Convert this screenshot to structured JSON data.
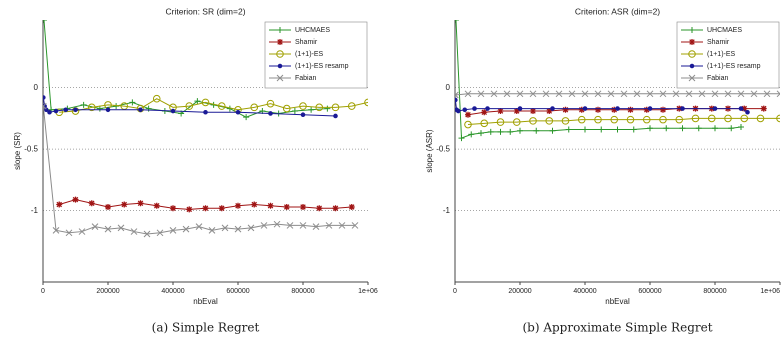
{
  "chart_data": [
    {
      "type": "line",
      "title": "Criterion: SR (dim=2)",
      "xlabel": "nbEval",
      "ylabel": "slope (SR)",
      "caption": "(a) Simple Regret",
      "xlim": [
        0,
        1000000
      ],
      "ylim": [
        -1.58,
        0.55
      ],
      "xticks": [
        0,
        200000,
        400000,
        600000,
        800000,
        {
          "value": 1000000,
          "label": "1e+06"
        }
      ],
      "yticks": [
        0,
        -0.5,
        -1
      ],
      "grid": true,
      "legend": "upper right",
      "series": [
        {
          "name": "UHCMAES",
          "color": "#2a962a",
          "marker": "plus",
          "x": [
            3000,
            25000,
            75000,
            125000,
            175000,
            225000,
            275000,
            325000,
            375000,
            425000,
            475000,
            525000,
            575000,
            625000,
            675000,
            725000,
            775000,
            825000,
            875000
          ],
          "values": [
            0.55,
            -0.18,
            -0.17,
            -0.14,
            -0.17,
            -0.15,
            -0.12,
            -0.17,
            -0.19,
            -0.21,
            -0.11,
            -0.14,
            -0.17,
            -0.24,
            -0.19,
            -0.21,
            -0.19,
            -0.18,
            -0.17
          ]
        },
        {
          "name": "Shamir",
          "color": "#a01414",
          "marker": "star",
          "x": [
            50000,
            100000,
            150000,
            200000,
            250000,
            300000,
            350000,
            400000,
            450000,
            500000,
            550000,
            600000,
            650000,
            700000,
            750000,
            800000,
            850000,
            900000,
            950000
          ],
          "values": [
            -0.95,
            -0.91,
            -0.94,
            -0.97,
            -0.95,
            -0.94,
            -0.96,
            -0.98,
            -0.99,
            -0.98,
            -0.98,
            -0.96,
            -0.95,
            -0.96,
            -0.97,
            -0.97,
            -0.98,
            -0.98,
            -0.97
          ]
        },
        {
          "name": "(1+1)-ES",
          "color": "#a0a000",
          "marker": "circle",
          "x": [
            50000,
            100000,
            150000,
            200000,
            250000,
            300000,
            350000,
            400000,
            450000,
            500000,
            550000,
            600000,
            650000,
            700000,
            750000,
            800000,
            850000,
            900000,
            950000,
            1000000
          ],
          "values": [
            -0.2,
            -0.19,
            -0.16,
            -0.14,
            -0.15,
            -0.17,
            -0.09,
            -0.16,
            -0.15,
            -0.12,
            -0.15,
            -0.18,
            -0.16,
            -0.13,
            -0.17,
            -0.15,
            -0.16,
            -0.16,
            -0.15,
            -0.12
          ]
        },
        {
          "name": "(1+1)-ES resamp",
          "color": "#1a1a96",
          "marker": "dot",
          "x": [
            1000,
            5000,
            10000,
            20000,
            40000,
            70000,
            100000,
            200000,
            300000,
            400000,
            500000,
            600000,
            700000,
            800000,
            900000
          ],
          "values": [
            -0.08,
            -0.15,
            -0.18,
            -0.2,
            -0.19,
            -0.18,
            -0.18,
            -0.18,
            -0.18,
            -0.19,
            -0.2,
            -0.2,
            -0.21,
            -0.22,
            -0.23
          ]
        },
        {
          "name": "Fabian",
          "color": "#8c8c8c",
          "marker": "x",
          "x": [
            1000,
            40000,
            80000,
            120000,
            160000,
            200000,
            240000,
            280000,
            320000,
            360000,
            400000,
            440000,
            480000,
            520000,
            560000,
            600000,
            640000,
            680000,
            720000,
            760000,
            800000,
            840000,
            880000,
            920000,
            960000
          ],
          "values": [
            -0.15,
            -1.16,
            -1.18,
            -1.17,
            -1.13,
            -1.15,
            -1.14,
            -1.17,
            -1.19,
            -1.18,
            -1.16,
            -1.15,
            -1.13,
            -1.16,
            -1.14,
            -1.15,
            -1.14,
            -1.12,
            -1.11,
            -1.12,
            -1.12,
            -1.13,
            -1.12,
            -1.12,
            -1.12
          ]
        }
      ]
    },
    {
      "type": "line",
      "title": "Criterion: ASR (dim=2)",
      "xlabel": "nbEval",
      "ylabel": "slope (ASR)",
      "caption": "(b) Approximate Simple Regret",
      "xlim": [
        0,
        1000000
      ],
      "ylim": [
        -1.58,
        0.55
      ],
      "xticks": [
        0,
        200000,
        400000,
        600000,
        800000,
        {
          "value": 1000000,
          "label": "1e+06"
        }
      ],
      "yticks": [
        0,
        -0.5,
        -1
      ],
      "grid": true,
      "legend": "upper right",
      "series": [
        {
          "name": "UHCMAES",
          "color": "#2a962a",
          "marker": "plus",
          "x": [
            3000,
            20000,
            50000,
            80000,
            110000,
            140000,
            170000,
            200000,
            250000,
            300000,
            350000,
            400000,
            450000,
            500000,
            550000,
            600000,
            650000,
            700000,
            750000,
            800000,
            850000,
            880000
          ],
          "values": [
            0.55,
            -0.41,
            -0.38,
            -0.37,
            -0.36,
            -0.36,
            -0.36,
            -0.35,
            -0.35,
            -0.35,
            -0.34,
            -0.34,
            -0.34,
            -0.34,
            -0.34,
            -0.33,
            -0.33,
            -0.33,
            -0.33,
            -0.33,
            -0.33,
            -0.32
          ]
        },
        {
          "name": "Shamir",
          "color": "#a01414",
          "marker": "star",
          "x": [
            40000,
            90000,
            140000,
            190000,
            240000,
            290000,
            340000,
            390000,
            440000,
            490000,
            540000,
            590000,
            640000,
            690000,
            740000,
            790000,
            840000,
            890000,
            950000
          ],
          "values": [
            -0.22,
            -0.2,
            -0.19,
            -0.19,
            -0.19,
            -0.19,
            -0.18,
            -0.18,
            -0.18,
            -0.18,
            -0.18,
            -0.18,
            -0.18,
            -0.17,
            -0.17,
            -0.17,
            -0.17,
            -0.17,
            -0.17
          ]
        },
        {
          "name": "(1+1)-ES",
          "color": "#a0a000",
          "marker": "circle",
          "x": [
            40000,
            90000,
            140000,
            190000,
            240000,
            290000,
            340000,
            390000,
            440000,
            490000,
            540000,
            590000,
            640000,
            690000,
            740000,
            790000,
            840000,
            890000,
            940000,
            1000000
          ],
          "values": [
            -0.3,
            -0.29,
            -0.28,
            -0.28,
            -0.27,
            -0.27,
            -0.27,
            -0.26,
            -0.26,
            -0.26,
            -0.26,
            -0.26,
            -0.26,
            -0.26,
            -0.25,
            -0.25,
            -0.25,
            -0.25,
            -0.25,
            -0.25
          ]
        },
        {
          "name": "(1+1)-ES resamp",
          "color": "#1a1a96",
          "marker": "dot",
          "x": [
            1000,
            5000,
            10000,
            30000,
            60000,
            100000,
            200000,
            300000,
            400000,
            500000,
            600000,
            700000,
            800000,
            880000,
            900000
          ],
          "values": [
            -0.1,
            -0.18,
            -0.19,
            -0.18,
            -0.17,
            -0.17,
            -0.17,
            -0.17,
            -0.17,
            -0.17,
            -0.17,
            -0.17,
            -0.17,
            -0.17,
            -0.2
          ]
        },
        {
          "name": "Fabian",
          "color": "#8c8c8c",
          "marker": "x",
          "x": [
            1000,
            40000,
            80000,
            120000,
            160000,
            200000,
            240000,
            280000,
            320000,
            360000,
            400000,
            440000,
            480000,
            520000,
            560000,
            600000,
            640000,
            680000,
            720000,
            760000,
            800000,
            840000,
            880000,
            920000,
            960000,
            1000000
          ],
          "values": [
            -0.06,
            -0.05,
            -0.05,
            -0.05,
            -0.05,
            -0.05,
            -0.05,
            -0.05,
            -0.05,
            -0.05,
            -0.05,
            -0.05,
            -0.05,
            -0.05,
            -0.05,
            -0.05,
            -0.05,
            -0.05,
            -0.05,
            -0.05,
            -0.05,
            -0.05,
            -0.05,
            -0.05,
            -0.05,
            -0.05
          ]
        }
      ]
    }
  ]
}
